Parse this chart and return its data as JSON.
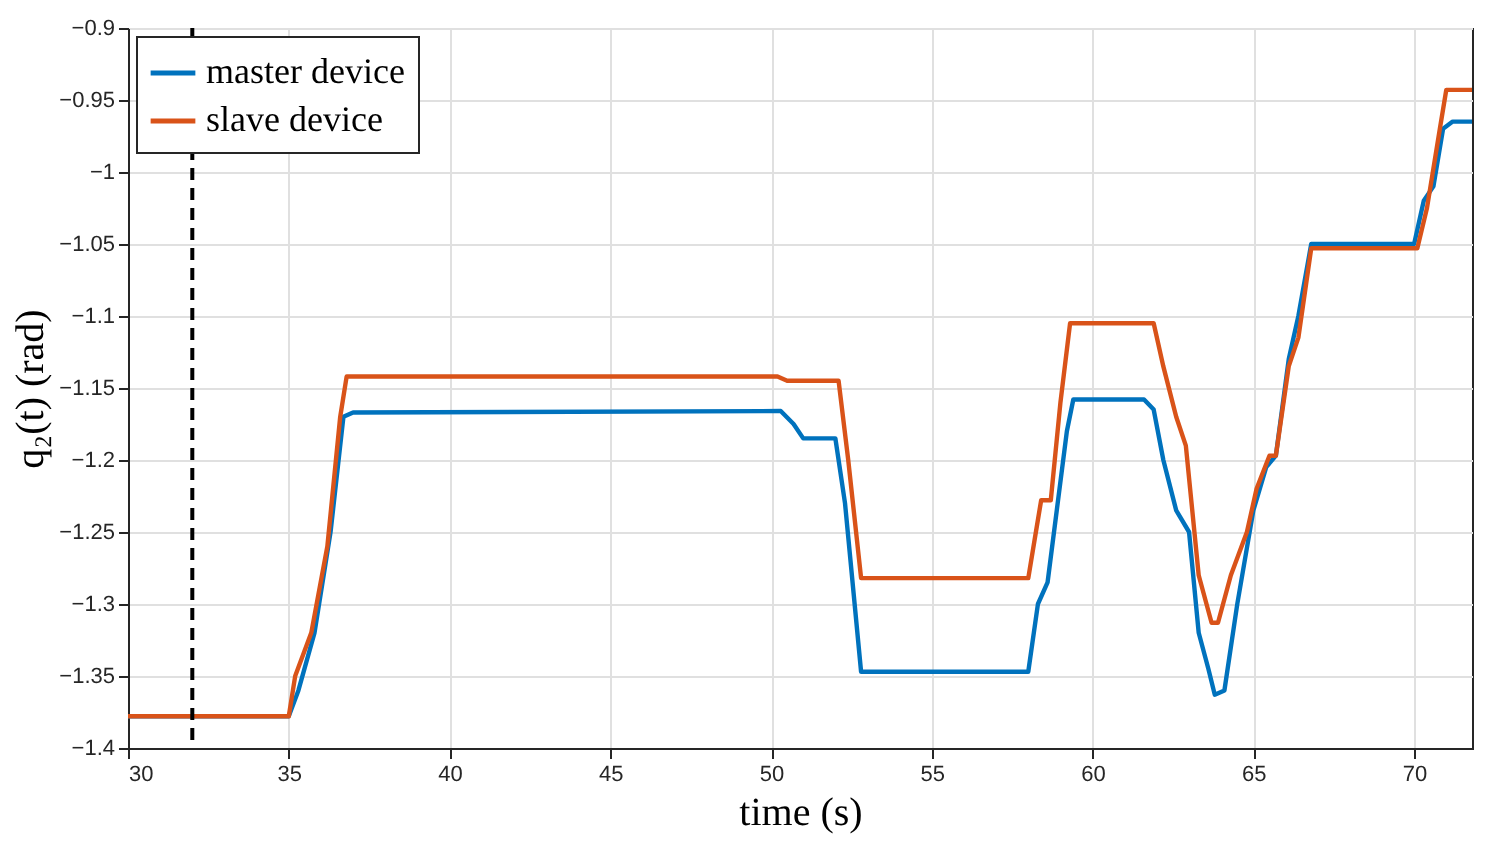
{
  "chart_data": {
    "type": "line",
    "xlabel": "time (s)",
    "ylabel": "q₂(t) (rad)",
    "xlim": [
      30,
      71.8
    ],
    "xticks": [
      30,
      35,
      40,
      45,
      50,
      55,
      60,
      65,
      70
    ],
    "ylim": [
      -1.4,
      -0.9
    ],
    "yticks": [
      -1.4,
      -1.35,
      -1.3,
      -1.25,
      -1.2,
      -1.15,
      -1.1,
      -1.05,
      -1,
      -0.95,
      -0.9
    ],
    "grid": true,
    "legend": "top left",
    "line_style": "solid",
    "marker": "none",
    "ref_lines": [
      {
        "axis": "x",
        "value": 32,
        "color": "#000000",
        "line_style": "dashed"
      }
    ],
    "series": [
      {
        "name": "master device",
        "color": "#0072bd",
        "x": [
          30,
          35.0,
          35.3,
          35.8,
          36.3,
          36.7,
          37.0,
          50.3,
          50.7,
          51.0,
          52.0,
          52.3,
          52.8,
          58.0,
          58.3,
          58.6,
          59.2,
          59.4,
          61.6,
          61.9,
          62.2,
          62.6,
          63.0,
          63.3,
          63.6,
          63.8,
          64.1,
          64.5,
          65.0,
          65.4,
          65.7,
          66.1,
          66.4,
          66.8,
          70.0,
          70.3,
          70.6,
          70.9,
          71.2,
          71.8
        ],
        "values": [
          -1.378,
          -1.378,
          -1.36,
          -1.32,
          -1.25,
          -1.17,
          -1.167,
          -1.166,
          -1.175,
          -1.185,
          -1.185,
          -1.23,
          -1.347,
          -1.347,
          -1.3,
          -1.285,
          -1.18,
          -1.158,
          -1.158,
          -1.165,
          -1.2,
          -1.235,
          -1.25,
          -1.32,
          -1.345,
          -1.363,
          -1.36,
          -1.3,
          -1.235,
          -1.205,
          -1.197,
          -1.13,
          -1.1,
          -1.05,
          -1.05,
          -1.02,
          -1.01,
          -0.97,
          -0.965,
          -0.965
        ]
      },
      {
        "name": "slave device",
        "color": "#d95319",
        "x": [
          30,
          35.0,
          35.2,
          35.7,
          36.2,
          36.6,
          36.8,
          50.2,
          50.5,
          52.1,
          52.4,
          52.8,
          58.0,
          58.2,
          58.4,
          58.7,
          59.0,
          59.3,
          61.9,
          62.2,
          62.6,
          62.9,
          63.3,
          63.7,
          63.9,
          64.3,
          64.8,
          65.1,
          65.5,
          65.7,
          66.1,
          66.4,
          66.8,
          70.1,
          70.4,
          70.8,
          71.0,
          71.8
        ],
        "values": [
          -1.378,
          -1.378,
          -1.35,
          -1.32,
          -1.26,
          -1.17,
          -1.142,
          -1.142,
          -1.145,
          -1.145,
          -1.2,
          -1.282,
          -1.282,
          -1.255,
          -1.228,
          -1.228,
          -1.16,
          -1.105,
          -1.105,
          -1.135,
          -1.17,
          -1.19,
          -1.28,
          -1.313,
          -1.313,
          -1.28,
          -1.25,
          -1.22,
          -1.197,
          -1.197,
          -1.135,
          -1.115,
          -1.053,
          -1.053,
          -1.025,
          -0.97,
          -0.943,
          -0.943
        ]
      }
    ]
  }
}
